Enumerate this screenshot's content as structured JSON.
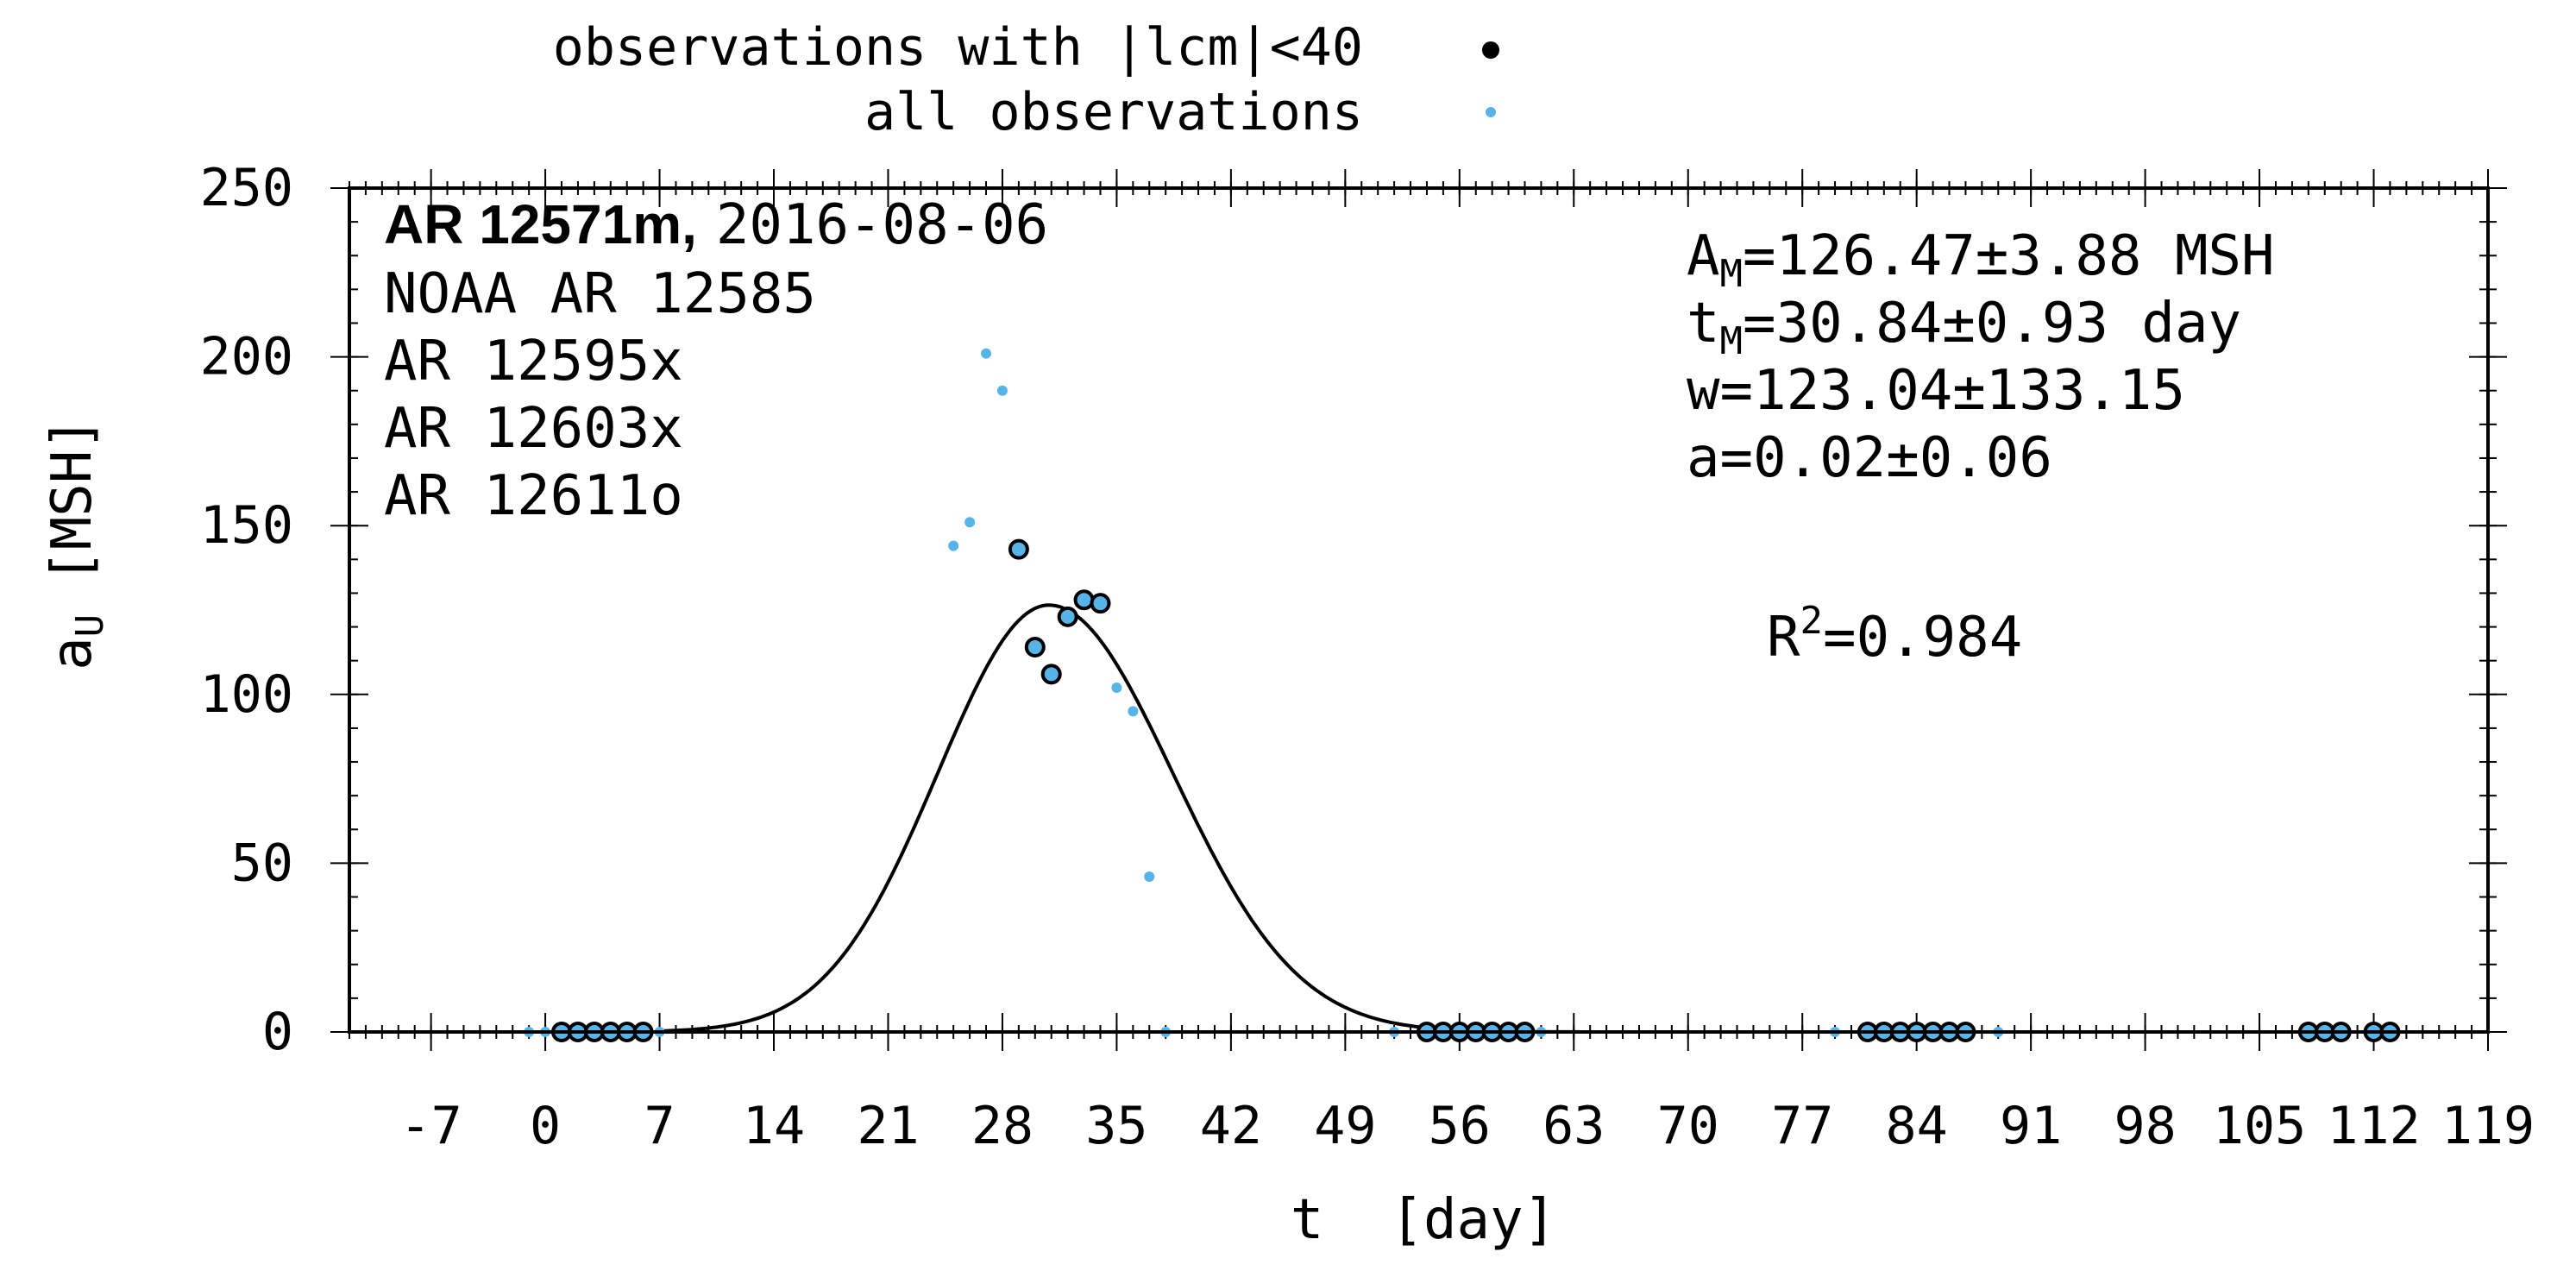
{
  "chart_data": {
    "type": "scatter",
    "xlabel": "t  [day]",
    "ylabel_main": "a",
    "ylabel_sub": "U",
    "ylabel_unit": "[MSH]",
    "xlim": [
      -12,
      119
    ],
    "ylim": [
      0,
      250
    ],
    "xticks": [
      -7,
      0,
      7,
      14,
      21,
      28,
      35,
      42,
      49,
      56,
      63,
      70,
      77,
      84,
      91,
      98,
      105,
      112,
      119
    ],
    "xtick_labels": [
      "-7",
      "0",
      "7",
      "14",
      "21",
      "28",
      "35",
      "42",
      "49",
      "56",
      "63",
      "70",
      "77",
      "84",
      "91",
      "98",
      "105",
      "112",
      "119"
    ],
    "yticks": [
      0,
      50,
      100,
      150,
      200,
      250
    ],
    "ytick_labels": [
      "0",
      "50",
      "100",
      "150",
      "200",
      "250"
    ],
    "legend": {
      "placement": "top",
      "entries": [
        {
          "label": "observations with |lcm|<40",
          "marker": "black-dot"
        },
        {
          "label": "all observations",
          "marker": "blue-dot"
        }
      ]
    },
    "annotations_left": {
      "title_bold": "AR 12571m,",
      "title_date": "2016-08-06",
      "lines": [
        "NOAA AR 12585",
        "AR 12595x",
        "AR 12603x",
        "AR 12611o"
      ]
    },
    "annotations_right": {
      "am_main": "A",
      "am_sub": "M",
      "am_value": "=126.47±3.88 MSH",
      "tm_main": "t",
      "tm_sub": "M",
      "tm_value": "=30.84±0.93 day",
      "w_text": "w=123.04±133.15",
      "a_text": "a=0.02±0.06",
      "r2_main": "R",
      "r2_sup": "2",
      "r2_value": "=0.984"
    },
    "fit_params": {
      "AM": 126.47,
      "tM": 30.84,
      "w": 123.04,
      "a": 0.02
    },
    "series": [
      {
        "name": "observations with |lcm|<40",
        "points": [
          [
            1,
            0
          ],
          [
            2,
            0
          ],
          [
            3,
            0
          ],
          [
            4,
            0
          ],
          [
            5,
            0
          ],
          [
            6,
            0
          ],
          [
            29,
            143
          ],
          [
            30,
            114
          ],
          [
            31,
            106
          ],
          [
            32,
            123
          ],
          [
            33,
            128
          ],
          [
            34,
            127
          ],
          [
            54,
            0
          ],
          [
            55,
            0
          ],
          [
            56,
            0
          ],
          [
            57,
            0
          ],
          [
            58,
            0
          ],
          [
            59,
            0
          ],
          [
            60,
            0
          ],
          [
            81,
            0
          ],
          [
            82,
            0
          ],
          [
            83,
            0
          ],
          [
            84,
            0
          ],
          [
            85,
            0
          ],
          [
            86,
            0
          ],
          [
            87,
            0
          ],
          [
            108,
            0
          ],
          [
            109,
            0
          ],
          [
            110,
            0
          ],
          [
            112,
            0
          ],
          [
            113,
            0
          ]
        ]
      },
      {
        "name": "all observations",
        "points": [
          [
            -1,
            0
          ],
          [
            0,
            0
          ],
          [
            1,
            0
          ],
          [
            2,
            0
          ],
          [
            3,
            0
          ],
          [
            4,
            0
          ],
          [
            5,
            0
          ],
          [
            6,
            0
          ],
          [
            7,
            0
          ],
          [
            25,
            144
          ],
          [
            26,
            151
          ],
          [
            27,
            201
          ],
          [
            28,
            190
          ],
          [
            29,
            143
          ],
          [
            30,
            114
          ],
          [
            31,
            106
          ],
          [
            32,
            123
          ],
          [
            33,
            128
          ],
          [
            34,
            127
          ],
          [
            35,
            102
          ],
          [
            36,
            95
          ],
          [
            37,
            46
          ],
          [
            38,
            0
          ],
          [
            52,
            0
          ],
          [
            54,
            0
          ],
          [
            55,
            0
          ],
          [
            56,
            0
          ],
          [
            57,
            0
          ],
          [
            58,
            0
          ],
          [
            59,
            0
          ],
          [
            60,
            0
          ],
          [
            61,
            0
          ],
          [
            79,
            0
          ],
          [
            81,
            0
          ],
          [
            82,
            0
          ],
          [
            83,
            0
          ],
          [
            84,
            0
          ],
          [
            85,
            0
          ],
          [
            86,
            0
          ],
          [
            87,
            0
          ],
          [
            89,
            0
          ],
          [
            108,
            0
          ],
          [
            109,
            0
          ],
          [
            110,
            0
          ],
          [
            112,
            0
          ],
          [
            113,
            0
          ]
        ]
      }
    ],
    "colors": {
      "all_observations": "#56b4e9",
      "selected_fill": "#56b4e9",
      "selected_edge": "#000000",
      "fit_line": "#000000",
      "axes": "#000000"
    }
  }
}
